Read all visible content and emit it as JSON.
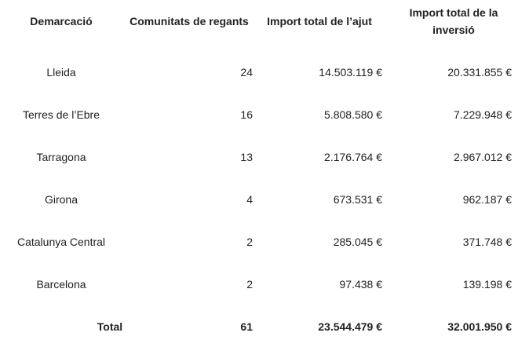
{
  "table": {
    "headers": [
      "Demarcació",
      "Comunitats de regants",
      "Import total de l’ajut",
      "Import total de la inversió"
    ],
    "rows": [
      [
        "Lleida",
        "24",
        "14.503.119 €",
        "20.331.855 €"
      ],
      [
        "Terres de l’Ebre",
        "16",
        "5.808.580 €",
        "7.229.948 €"
      ],
      [
        "Tarragona",
        "13",
        "2.176.764 €",
        "2.967.012 €"
      ],
      [
        "Girona",
        "4",
        "673.531 €",
        "962.187 €"
      ],
      [
        "Catalunya Central",
        "2",
        "285.045 €",
        "371.748 €"
      ],
      [
        "Barcelona",
        "2",
        "97.438 €",
        "139.198 €"
      ]
    ],
    "total": [
      "Total",
      "61",
      "23.544.479 €",
      "32.001.950 €"
    ]
  }
}
